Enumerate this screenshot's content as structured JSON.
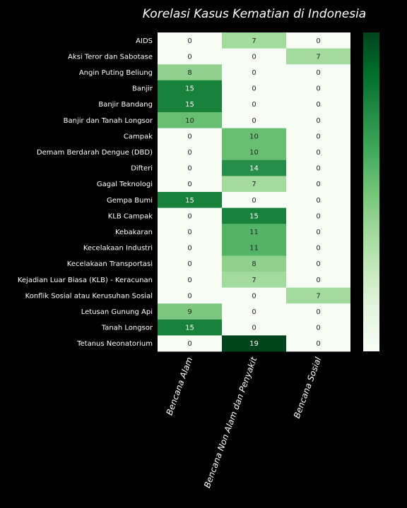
{
  "chart_data": {
    "type": "heatmap",
    "title": "Korelasi Kasus Kematian di Indonesia",
    "rows": [
      "AIDS",
      "Aksi Teror dan Sabotase",
      "Angin Puting Beliung",
      "Banjir",
      "Banjir Bandang",
      "Banjir dan Tanah Longsor",
      "Campak",
      "Demam Berdarah Dengue (DBD)",
      "Difteri",
      "Gagal Teknologi",
      "Gempa Bumi",
      "KLB Campak",
      "Kebakaran",
      "Kecelakaan Industri",
      "Kecelakaan Transportasi",
      "Kejadian Luar Biasa (KLB) - Keracunan",
      "Konflik Sosial atau Kerusuhan Sosial",
      "Letusan Gunung Api",
      "Tanah Longsor",
      "Tetanus Neonatorium"
    ],
    "columns": [
      "Bencana Alam",
      "Bencana Non Alam dan Penyakit",
      "Bencana Sosial"
    ],
    "values": [
      [
        0,
        7,
        0
      ],
      [
        0,
        0,
        7
      ],
      [
        8,
        0,
        0
      ],
      [
        15,
        0,
        0
      ],
      [
        15,
        0,
        0
      ],
      [
        10,
        0,
        0
      ],
      [
        0,
        10,
        0
      ],
      [
        0,
        10,
        0
      ],
      [
        0,
        14,
        0
      ],
      [
        0,
        7,
        0
      ],
      [
        15,
        0,
        0
      ],
      [
        0,
        15,
        0
      ],
      [
        0,
        11,
        0
      ],
      [
        0,
        11,
        0
      ],
      [
        0,
        8,
        0
      ],
      [
        0,
        7,
        0
      ],
      [
        0,
        0,
        7
      ],
      [
        9,
        0,
        0
      ],
      [
        15,
        0,
        0
      ],
      [
        0,
        19,
        0
      ]
    ],
    "value_range": [
      0,
      19
    ],
    "colormap": "Greens",
    "colorbar": true,
    "colors": {
      "background": "#000000",
      "text": "#ffffff",
      "low": "#f7fcf5",
      "high": "#00441b"
    }
  }
}
